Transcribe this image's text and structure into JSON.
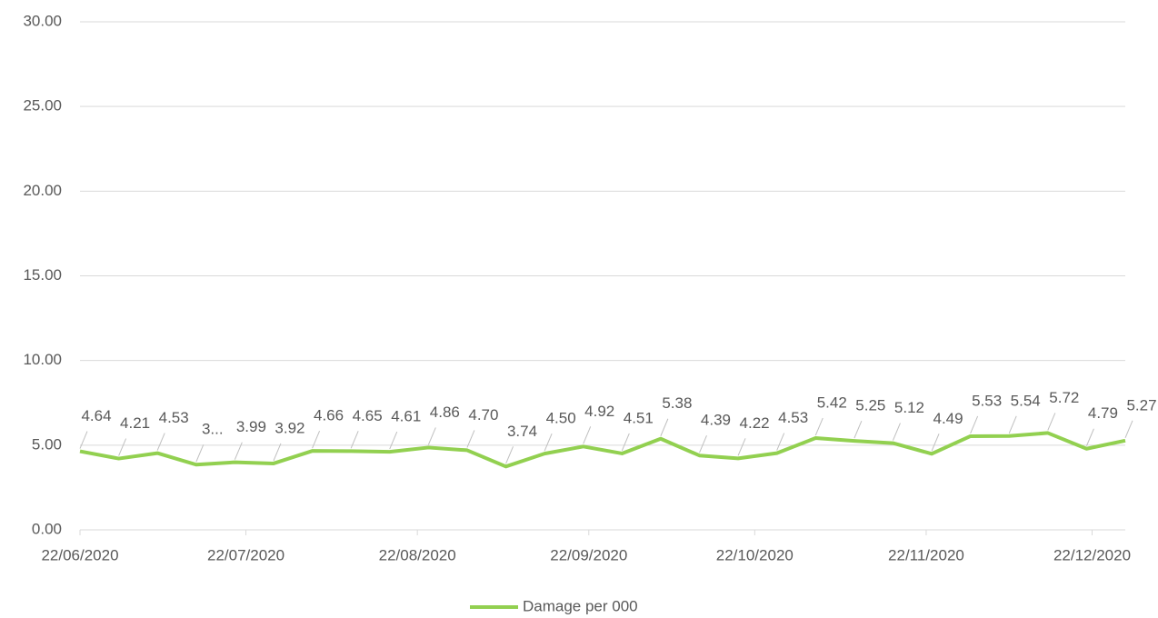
{
  "chart_data": {
    "type": "line",
    "x": [
      "2020-06-22",
      "2020-06-29",
      "2020-07-06",
      "2020-07-13",
      "2020-07-20",
      "2020-07-27",
      "2020-08-03",
      "2020-08-10",
      "2020-08-17",
      "2020-08-24",
      "2020-08-31",
      "2020-09-07",
      "2020-09-14",
      "2020-09-21",
      "2020-09-28",
      "2020-10-05",
      "2020-10-12",
      "2020-10-19",
      "2020-10-26",
      "2020-11-02",
      "2020-11-09",
      "2020-11-16",
      "2020-11-23",
      "2020-11-30",
      "2020-12-07",
      "2020-12-14",
      "2020-12-21",
      "2020-12-28"
    ],
    "series": [
      {
        "name": "Damage per 000",
        "color": "#92d050",
        "values": [
          4.64,
          4.21,
          4.53,
          3.85,
          3.99,
          3.92,
          4.66,
          4.65,
          4.61,
          4.86,
          4.7,
          3.74,
          4.5,
          4.92,
          4.51,
          5.38,
          4.39,
          4.22,
          4.53,
          5.42,
          5.25,
          5.12,
          4.49,
          5.53,
          5.54,
          5.72,
          4.79,
          5.27
        ],
        "value_labels": [
          "4.64",
          "4.21",
          "4.53",
          "3...",
          "3.99",
          "3.92",
          "4.66",
          "4.65",
          "4.61",
          "4.86",
          "4.70",
          "3.74",
          "4.50",
          "4.92",
          "4.51",
          "5.38",
          "4.39",
          "4.22",
          "4.53",
          "5.42",
          "5.25",
          "5.12",
          "4.49",
          "5.53",
          "5.54",
          "5.72",
          "4.79",
          "5.27"
        ]
      }
    ],
    "xlim": [
      "2020-06-22",
      "2020-12-28"
    ],
    "xticks": [
      {
        "value": "2020-06-22",
        "label": "22/06/2020"
      },
      {
        "value": "2020-07-22",
        "label": "22/07/2020"
      },
      {
        "value": "2020-08-22",
        "label": "22/08/2020"
      },
      {
        "value": "2020-09-22",
        "label": "22/09/2020"
      },
      {
        "value": "2020-10-22",
        "label": "22/10/2020"
      },
      {
        "value": "2020-11-22",
        "label": "22/11/2020"
      },
      {
        "value": "2020-12-22",
        "label": "22/12/2020"
      }
    ],
    "ylim": [
      0,
      30
    ],
    "yticks": [
      {
        "value": 0,
        "label": "0.00"
      },
      {
        "value": 5,
        "label": "5.00"
      },
      {
        "value": 10,
        "label": "10.00"
      },
      {
        "value": 15,
        "label": "15.00"
      },
      {
        "value": 20,
        "label": "20.00"
      },
      {
        "value": 25,
        "label": "25.00"
      },
      {
        "value": 30,
        "label": "30.00"
      }
    ],
    "grid": true,
    "legend": "bottom"
  }
}
